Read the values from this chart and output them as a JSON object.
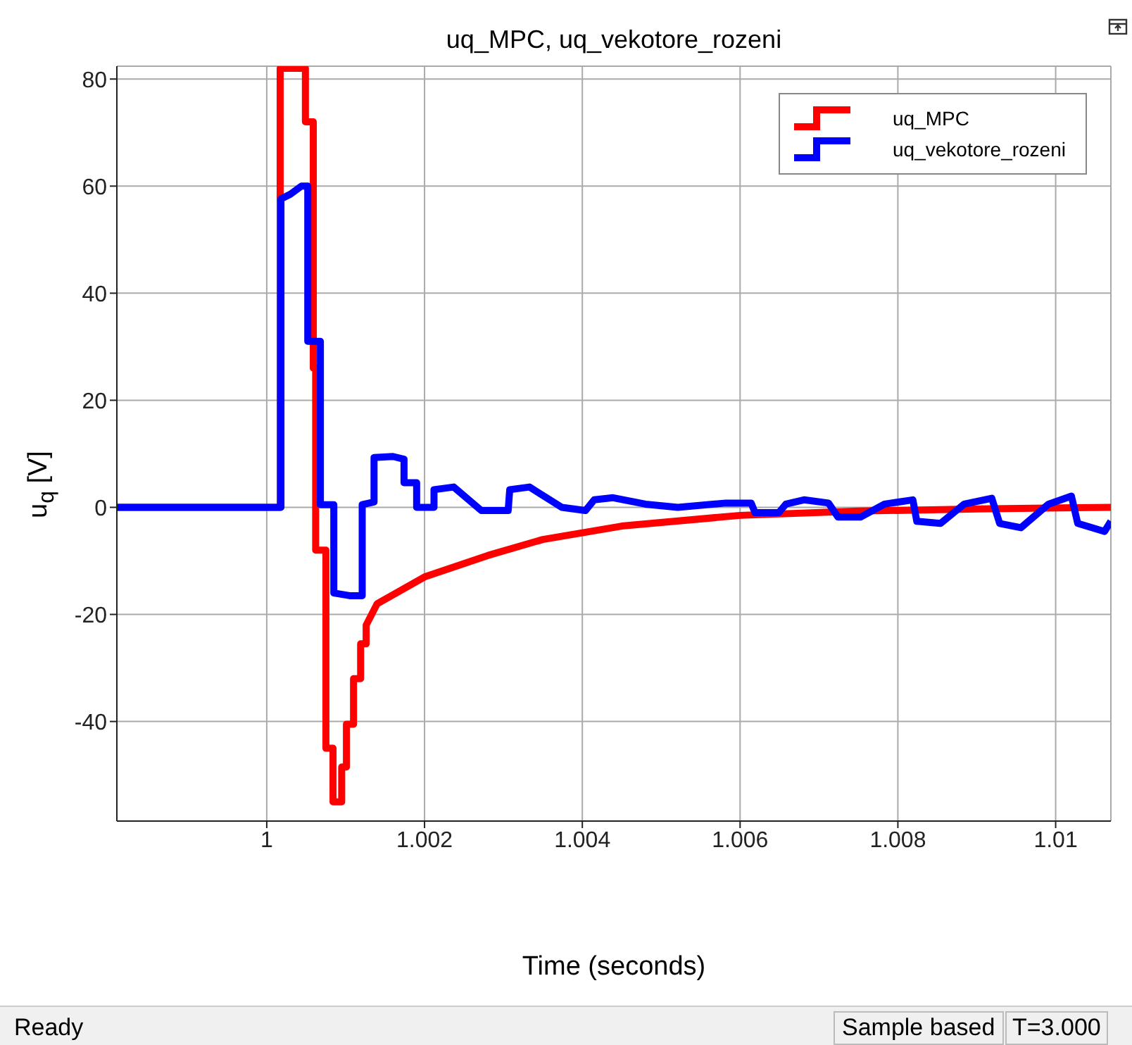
{
  "chart_data": {
    "type": "line",
    "title": "uq_MPC, uq_vekotore_rozeni",
    "xlabel": "Time (seconds)",
    "ylabel": "u$_{q}$ [V]",
    "xlim": [
      0.9981,
      1.0107
    ],
    "xticks": [
      1,
      1.002,
      1.004,
      1.006,
      1.008,
      1.01
    ],
    "ylim": [
      -58.6,
      82.4
    ],
    "yticks": [
      -40,
      -20,
      0,
      20,
      40,
      60,
      80
    ],
    "grid": true,
    "legend": "top right",
    "line_style": "solid",
    "marker": "none",
    "annotations": [
      "Ready",
      "Sample based",
      "T=3.000"
    ],
    "series": [
      {
        "name": "uq_MPC",
        "color": "#ff0000",
        "x": [
          0.9981,
          1.00017,
          1.00017,
          1.00049,
          1.00049,
          1.00059,
          1.00059,
          1.00062,
          1.00062,
          1.00075,
          1.00075,
          1.00084,
          1.00084,
          1.00095,
          1.00095,
          1.00101,
          1.00101,
          1.0011,
          1.0011,
          1.00119,
          1.00119,
          1.00126,
          1.00126,
          1.0014,
          1.002,
          1.0028,
          1.0035,
          1.0045,
          1.006,
          1.0075,
          1.009,
          1.0107
        ],
        "values": [
          0,
          0,
          82,
          82,
          72,
          72,
          26,
          26,
          -8,
          -8,
          -45,
          -45,
          -55,
          -55,
          -48.5,
          -48.5,
          -40.5,
          -40.5,
          -32,
          -32,
          -25.5,
          -25.5,
          -22,
          -18,
          -13,
          -9,
          -6,
          -3.5,
          -1.5,
          -0.7,
          -0.3,
          0
        ]
      },
      {
        "name": "uq_vekotore_rozeni",
        "color": "#0000ff",
        "x": [
          0.9981,
          1.00018,
          1.00018,
          1.0003,
          1.00044,
          1.00052,
          1.00052,
          1.00068,
          1.00068,
          1.00085,
          1.00085,
          1.00105,
          1.00121,
          1.00121,
          1.00136,
          1.00136,
          1.0016,
          1.00174,
          1.00174,
          1.0019,
          1.0019,
          1.00212,
          1.00212,
          1.00237,
          1.00272,
          1.00306,
          1.00308,
          1.00333,
          1.00374,
          1.00404,
          1.00415,
          1.00439,
          1.0048,
          1.00521,
          1.00582,
          1.00614,
          1.00619,
          1.00649,
          1.00658,
          1.00681,
          1.00712,
          1.00724,
          1.00753,
          1.00783,
          1.00819,
          1.00824,
          1.00854,
          1.00884,
          1.00919,
          1.00929,
          1.00956,
          1.00991,
          1.0102,
          1.01028,
          1.01062,
          1.0107
        ],
        "values": [
          0,
          0,
          57.6,
          58.5,
          60,
          60,
          31,
          31,
          0.5,
          0.5,
          -16,
          -16.5,
          -16.5,
          0.5,
          1,
          9.3,
          9.5,
          9,
          4.6,
          4.6,
          0,
          0,
          3.3,
          3.8,
          -0.6,
          -0.6,
          3.3,
          3.8,
          0,
          -0.6,
          1.4,
          1.8,
          0.6,
          0,
          0.8,
          0.8,
          -1,
          -1,
          0.6,
          1.4,
          0.8,
          -1.8,
          -1.8,
          0.6,
          1.4,
          -2.6,
          -3,
          0.6,
          1.7,
          -3,
          -3.8,
          0.6,
          2.1,
          -3,
          -4.5,
          -2.6
        ]
      }
    ]
  }
}
